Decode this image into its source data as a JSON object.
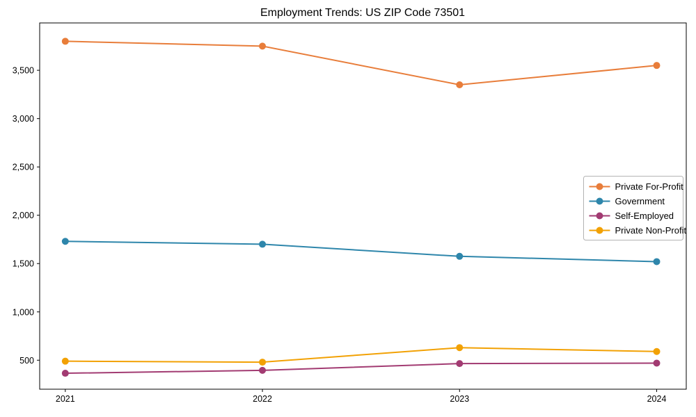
{
  "chart_data": {
    "type": "line",
    "title": "Employment Trends: US ZIP Code 73501",
    "x": [
      2021,
      2022,
      2023,
      2024
    ],
    "xticks": [
      2021,
      2022,
      2023,
      2024
    ],
    "xtick_labels": [
      "2021",
      "2022",
      "2023",
      "2024"
    ],
    "yticks": [
      500,
      1000,
      1500,
      2000,
      2500,
      3000,
      3500
    ],
    "ytick_labels": [
      "500",
      "1,000",
      "1,500",
      "2,000",
      "2,500",
      "3,000",
      "3,500"
    ],
    "xlim": [
      2020.87,
      2024.15
    ],
    "ylim": [
      200,
      3990
    ],
    "grid": false,
    "legend_position": "center-right",
    "marker": "circle",
    "xlabel": "",
    "ylabel": "",
    "series": [
      {
        "name": "Private For-Profit",
        "color": "#E87D3A",
        "values": [
          3800,
          3750,
          3350,
          3550
        ]
      },
      {
        "name": "Government",
        "color": "#2E86AB",
        "values": [
          1730,
          1700,
          1575,
          1520
        ]
      },
      {
        "name": "Self-Employed",
        "color": "#A23B72",
        "values": [
          365,
          395,
          465,
          470
        ]
      },
      {
        "name": "Private Non-Profit",
        "color": "#F2A104",
        "values": [
          490,
          480,
          630,
          590
        ]
      }
    ],
    "colors": {
      "spine": "#000000",
      "background": "#ffffff",
      "legend_border": "#b3b3b3"
    }
  }
}
